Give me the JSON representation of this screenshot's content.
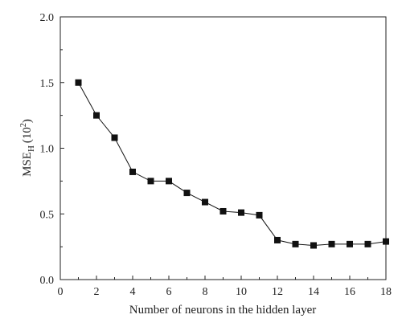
{
  "chart_data": {
    "type": "line",
    "xlabel": "Number of neurons in the hidden layer",
    "ylabel": {
      "main": "MSE",
      "subscript": "H",
      "unit_base": "(10",
      "unit_exp": "2",
      "unit_close": ")"
    },
    "xlim": [
      0,
      18
    ],
    "ylim": [
      0.0,
      2.0
    ],
    "x_ticks": [
      0,
      2,
      4,
      6,
      8,
      10,
      12,
      14,
      16,
      18
    ],
    "x_tick_labels": [
      "0",
      "2",
      "4",
      "6",
      "8",
      "10",
      "12",
      "14",
      "16",
      "18"
    ],
    "y_ticks": [
      0.0,
      0.5,
      1.0,
      1.5,
      2.0
    ],
    "y_tick_labels": [
      "0.0",
      "0.5",
      "1.0",
      "1.5",
      "2.0"
    ],
    "grid": false,
    "marker": "square",
    "series_color": "#111111",
    "series": [
      {
        "x": [
          1,
          2,
          3,
          4,
          5,
          6,
          7,
          8,
          9,
          10,
          11,
          12,
          13,
          14,
          15,
          16,
          17,
          18
        ],
        "y": [
          1.5,
          1.25,
          1.08,
          0.82,
          0.75,
          0.75,
          0.66,
          0.59,
          0.52,
          0.51,
          0.49,
          0.3,
          0.27,
          0.26,
          0.27,
          0.27,
          0.27,
          0.29
        ]
      }
    ]
  }
}
